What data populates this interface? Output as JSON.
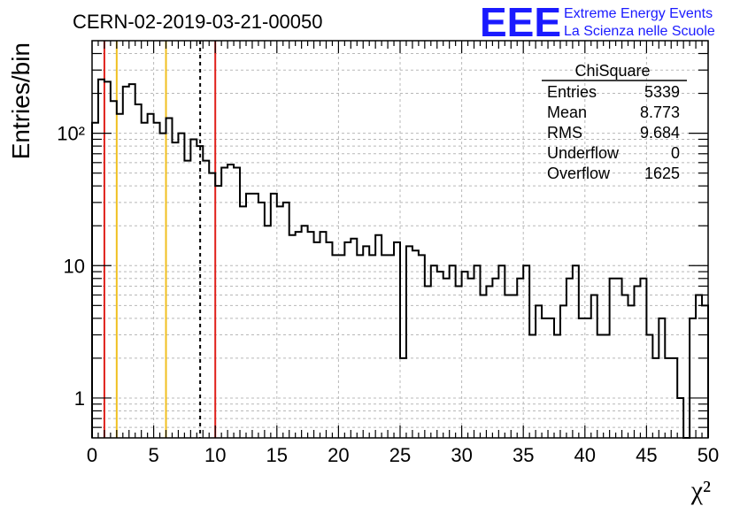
{
  "colors": {
    "brand": "#1a1aff",
    "red_line": "#e0201b",
    "yellow_line": "#f0c020",
    "grid": "#b8b8b8"
  },
  "logo": {
    "letters": "EEE",
    "line1": "Extreme Energy Events",
    "line2": "La Scienza nelle Scuole"
  },
  "stats": {
    "title": "ChiSquare",
    "rows": [
      {
        "label": "Entries",
        "value": "5339"
      },
      {
        "label": "Mean",
        "value": "8.773"
      },
      {
        "label": "RMS",
        "value": "9.684"
      },
      {
        "label": "Underflow",
        "value": "0"
      },
      {
        "label": "Overflow",
        "value": "1625"
      }
    ]
  },
  "chart_data": {
    "type": "histogram",
    "title": "CERN-02-2019-03-21-00050",
    "xlabel": "χ²",
    "ylabel": "Entries/bin",
    "xlim": [
      0,
      50
    ],
    "ylim": [
      0.5,
      500
    ],
    "ylog": true,
    "grid": true,
    "bin_width": 0.5,
    "x_ticks": [
      "0",
      "5",
      "10",
      "15",
      "20",
      "25",
      "30",
      "35",
      "40",
      "45",
      "50"
    ],
    "y_ticks": [
      {
        "value": 1,
        "label": "1"
      },
      {
        "value": 10,
        "label": "10"
      },
      {
        "value": 100,
        "label": "10²"
      }
    ],
    "values": [
      120,
      255,
      245,
      175,
      140,
      225,
      235,
      165,
      120,
      140,
      120,
      100,
      130,
      85,
      100,
      62,
      90,
      80,
      62,
      50,
      40,
      55,
      58,
      55,
      28,
      35,
      35,
      30,
      20,
      35,
      28,
      30,
      17,
      18,
      20,
      18,
      15,
      18,
      15,
      12,
      12,
      15,
      16,
      12,
      14,
      12,
      17,
      12,
      12,
      15,
      2,
      14,
      13,
      12,
      7,
      10,
      9,
      8,
      10,
      7,
      9,
      8,
      10,
      6,
      7,
      8,
      10,
      6,
      6,
      8,
      10,
      3,
      5,
      4,
      4,
      3,
      5,
      8,
      10,
      4,
      4,
      6,
      3,
      3,
      8,
      8,
      6,
      5,
      7,
      8,
      3,
      2,
      4,
      2,
      2,
      1,
      0.5,
      4,
      6,
      5
    ],
    "vertical_lines": [
      {
        "x": 1,
        "color": "red",
        "style": "solid"
      },
      {
        "x": 2,
        "color": "yellow",
        "style": "solid"
      },
      {
        "x": 6,
        "color": "yellow",
        "style": "solid"
      },
      {
        "x": 8.773,
        "color": "black",
        "style": "dashed"
      },
      {
        "x": 10,
        "color": "red",
        "style": "solid"
      }
    ]
  }
}
